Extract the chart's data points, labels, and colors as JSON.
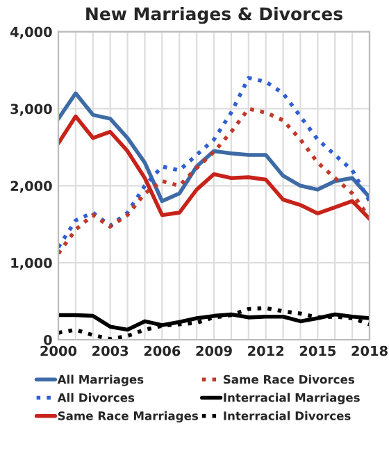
{
  "chart_data": {
    "type": "line",
    "title": "New Marriages & Divorces",
    "x": [
      2000,
      2001,
      2002,
      2003,
      2004,
      2005,
      2006,
      2007,
      2008,
      2009,
      2010,
      2011,
      2012,
      2013,
      2014,
      2015,
      2016,
      2017,
      2018
    ],
    "xlim": [
      2000,
      2018
    ],
    "xticks": [
      2000,
      2003,
      2006,
      2009,
      2012,
      2015,
      2018
    ],
    "ylim": [
      0,
      4000
    ],
    "yticks": [
      {
        "value": 0,
        "label": "0"
      },
      {
        "value": 1000,
        "label": "1,000"
      },
      {
        "value": 2000,
        "label": "2,000"
      },
      {
        "value": 3000,
        "label": "3,000"
      },
      {
        "value": 4000,
        "label": "4,000"
      }
    ],
    "grid": true,
    "legend": "bottom",
    "series": [
      {
        "name": "All Marriages",
        "color": "#3e6aa6",
        "line_style": "solid",
        "values": [
          2870,
          3200,
          2920,
          2870,
          2620,
          2300,
          1800,
          1900,
          2250,
          2450,
          2420,
          2400,
          2400,
          2130,
          2000,
          1950,
          2060,
          2100,
          1850
        ]
      },
      {
        "name": "All Divorces",
        "color": "#2f5fd0",
        "line_style": "dotted",
        "values": [
          1200,
          1550,
          1650,
          1480,
          1650,
          2000,
          2250,
          2200,
          2400,
          2600,
          2950,
          3400,
          3350,
          3200,
          2900,
          2600,
          2400,
          2200,
          1800
        ]
      },
      {
        "name": "Same Race Marriages",
        "color": "#c8231b",
        "line_style": "solid",
        "values": [
          2550,
          2900,
          2620,
          2700,
          2450,
          2100,
          1620,
          1650,
          1950,
          2150,
          2100,
          2110,
          2080,
          1820,
          1750,
          1640,
          1720,
          1800,
          1570
        ]
      },
      {
        "name": "Same Race Divorces",
        "color": "#c0392b",
        "line_style": "dotted",
        "values": [
          1120,
          1430,
          1620,
          1470,
          1620,
          1900,
          2060,
          2000,
          2230,
          2440,
          2700,
          3000,
          2950,
          2850,
          2600,
          2300,
          2100,
          1900,
          1580
        ]
      },
      {
        "name": "Interracial Marriages",
        "color": "#000000",
        "line_style": "solid",
        "values": [
          320,
          320,
          310,
          170,
          130,
          240,
          190,
          230,
          280,
          310,
          330,
          290,
          300,
          300,
          240,
          280,
          330,
          300,
          280
        ]
      },
      {
        "name": "Interracial Divorces",
        "color": "#000000",
        "line_style": "dotted",
        "values": [
          90,
          130,
          60,
          10,
          50,
          130,
          180,
          200,
          220,
          290,
          320,
          400,
          410,
          370,
          340,
          290,
          300,
          280,
          200
        ]
      }
    ]
  }
}
